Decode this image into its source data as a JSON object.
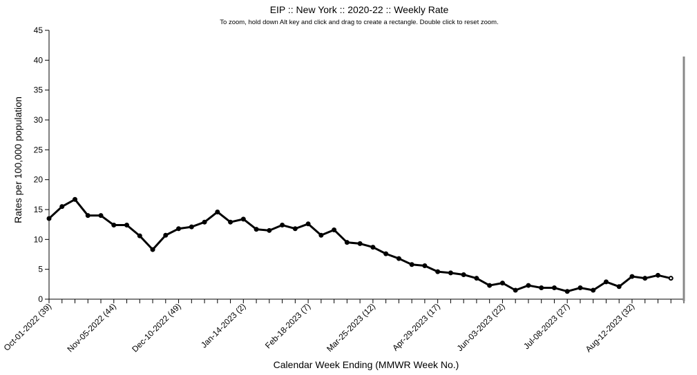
{
  "chart_data": {
    "type": "line",
    "title": "EIP :: New York :: 2020-22 :: Weekly Rate",
    "subtitle": "To zoom, hold down Alt key and click and drag to create a rectangle. Double click to reset zoom.",
    "xlabel": "Calendar Week Ending (MMWR Week No.)",
    "ylabel": "Rates per 100,000 population",
    "ylim": [
      0,
      45
    ],
    "yticks": [
      0,
      5,
      10,
      15,
      20,
      25,
      30,
      35,
      40,
      45
    ],
    "x_labeled_ticks": [
      {
        "index": 0,
        "label": "Oct-01-2022 (39)"
      },
      {
        "index": 5,
        "label": "Nov-05-2022 (44)"
      },
      {
        "index": 10,
        "label": "Dec-10-2022 (49)"
      },
      {
        "index": 15,
        "label": "Jan-14-2023 (2)"
      },
      {
        "index": 20,
        "label": "Feb-18-2023 (7)"
      },
      {
        "index": 25,
        "label": "Mar-25-2023 (12)"
      },
      {
        "index": 30,
        "label": "Apr-29-2023 (17)"
      },
      {
        "index": 35,
        "label": "Jun-03-2023 (22)"
      },
      {
        "index": 40,
        "label": "Jul-08-2023 (27)"
      },
      {
        "index": 45,
        "label": "Aug-12-2023 (32)"
      }
    ],
    "x_tick_count": 50,
    "grid": false,
    "series": [
      {
        "values": [
          13.5,
          15.5,
          16.7,
          14.0,
          14.0,
          12.4,
          12.4,
          10.6,
          8.3,
          10.7,
          11.8,
          12.1,
          12.9,
          14.6,
          12.9,
          13.4,
          11.7,
          11.5,
          12.4,
          11.8,
          12.6,
          10.7,
          11.6,
          9.5,
          9.3,
          8.7,
          7.6,
          6.8,
          5.8,
          5.6,
          4.6,
          4.4,
          4.1,
          3.5,
          2.3,
          2.7,
          1.5,
          2.3,
          1.9,
          1.9,
          1.3,
          1.9,
          1.5,
          2.9,
          2.1,
          3.8,
          3.5,
          4.0,
          3.5
        ]
      }
    ]
  }
}
